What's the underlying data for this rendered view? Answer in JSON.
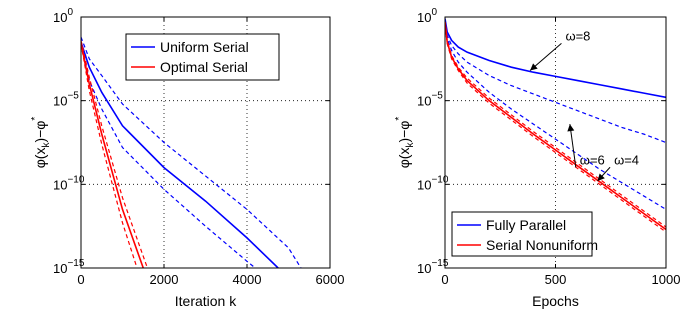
{
  "chart_data": [
    {
      "type": "line",
      "xlabel": "Iteration k",
      "ylabel": "φ(x_k)−φ*",
      "yscale": "log",
      "xlim": [
        0,
        6000
      ],
      "ylim_exp": [
        -15,
        0
      ],
      "xticks": [
        {
          "value": 0,
          "label": "0"
        },
        {
          "value": 2000,
          "label": "2000"
        },
        {
          "value": 4000,
          "label": "4000"
        },
        {
          "value": 6000,
          "label": "6000"
        }
      ],
      "yticks": [
        {
          "exp": 0,
          "label": "10"
        },
        {
          "exp": -5,
          "label": "10"
        },
        {
          "exp": -10,
          "label": "10"
        },
        {
          "exp": -15,
          "label": "10"
        }
      ],
      "grid": true,
      "legend_position": "top-right",
      "series": [
        {
          "name": "Uniform Serial",
          "color": "#0000ff",
          "style": "solid",
          "x": [
            0,
            200,
            500,
            1000,
            2000,
            3000,
            4000,
            4750
          ],
          "log10y": [
            -1.5,
            -3.0,
            -4.5,
            -6.5,
            -9.0,
            -11.0,
            -13.2,
            -15.0
          ]
        },
        {
          "name": "",
          "color": "#0000ff",
          "style": "dashed",
          "x": [
            0,
            200,
            500,
            1000,
            2000,
            3000,
            4000,
            5000,
            5300
          ],
          "log10y": [
            -1.2,
            -2.5,
            -3.5,
            -5.2,
            -7.5,
            -9.5,
            -11.5,
            -13.8,
            -15.0
          ]
        },
        {
          "name": "",
          "color": "#0000ff",
          "style": "dashed",
          "x": [
            0,
            200,
            500,
            1000,
            2000,
            3000,
            4000,
            4200
          ],
          "log10y": [
            -1.5,
            -3.8,
            -5.5,
            -7.8,
            -10.3,
            -12.5,
            -14.6,
            -15.0
          ]
        },
        {
          "name": "Optimal Serial",
          "color": "#ff0000",
          "style": "solid",
          "x": [
            0,
            100,
            200,
            500,
            1000,
            1500
          ],
          "log10y": [
            -1.5,
            -2.8,
            -4.0,
            -7.0,
            -11.5,
            -15.0
          ]
        },
        {
          "name": "",
          "color": "#ff0000",
          "style": "dashed",
          "x": [
            0,
            100,
            200,
            500,
            1000,
            1600
          ],
          "log10y": [
            -1.4,
            -2.5,
            -3.6,
            -6.5,
            -10.8,
            -15.0
          ]
        },
        {
          "name": "",
          "color": "#ff0000",
          "style": "dashed",
          "x": [
            0,
            100,
            200,
            500,
            1000,
            1350
          ],
          "log10y": [
            -1.6,
            -3.0,
            -4.4,
            -7.6,
            -12.3,
            -15.0
          ]
        }
      ]
    },
    {
      "type": "line",
      "xlabel": "Epochs",
      "ylabel": "φ(x_k)−φ*",
      "yscale": "log",
      "xlim": [
        0,
        1000
      ],
      "ylim_exp": [
        -15,
        0
      ],
      "xticks": [
        {
          "value": 0,
          "label": "0"
        },
        {
          "value": 500,
          "label": "500"
        },
        {
          "value": 1000,
          "label": "1000"
        }
      ],
      "yticks": [
        {
          "exp": 0,
          "label": "10"
        },
        {
          "exp": -5,
          "label": "10"
        },
        {
          "exp": -10,
          "label": "10"
        },
        {
          "exp": -15,
          "label": "10"
        }
      ],
      "grid": true,
      "legend_position": "bottom-left",
      "series": [
        {
          "name": "Fully Parallel",
          "color": "#0000ff",
          "style": "solid",
          "x": [
            0,
            10,
            30,
            60,
            100,
            200,
            300,
            400,
            500,
            600,
            700,
            800,
            900,
            1000
          ],
          "log10y": [
            -0.1,
            -0.9,
            -1.4,
            -1.8,
            -2.1,
            -2.6,
            -3.0,
            -3.3,
            -3.55,
            -3.8,
            -4.05,
            -4.3,
            -4.55,
            -4.8
          ]
        },
        {
          "name": "",
          "color": "#0000ff",
          "style": "dashed",
          "x": [
            0,
            10,
            30,
            60,
            100,
            200,
            300,
            400,
            500,
            600,
            700,
            800,
            900,
            1000
          ],
          "log10y": [
            -0.2,
            -1.1,
            -1.7,
            -2.2,
            -2.7,
            -3.5,
            -4.1,
            -4.6,
            -5.1,
            -5.6,
            -6.1,
            -6.6,
            -7.0,
            -7.5
          ]
        },
        {
          "name": "",
          "color": "#0000ff",
          "style": "dashed",
          "x": [
            0,
            10,
            30,
            60,
            100,
            200,
            300,
            400,
            500,
            600,
            700,
            800,
            900,
            1000
          ],
          "log10y": [
            -0.2,
            -1.3,
            -2.0,
            -2.7,
            -3.3,
            -4.5,
            -5.5,
            -6.4,
            -7.3,
            -8.2,
            -9.1,
            -9.9,
            -10.7,
            -11.5
          ]
        },
        {
          "name": "Serial Nonuniform",
          "color": "#ff0000",
          "style": "solid",
          "x": [
            0,
            10,
            30,
            60,
            100,
            200,
            300,
            400,
            500,
            600,
            700,
            800,
            900,
            1000
          ],
          "log10y": [
            -0.3,
            -1.5,
            -2.4,
            -3.1,
            -3.8,
            -5.0,
            -6.0,
            -7.0,
            -7.95,
            -8.9,
            -9.85,
            -10.8,
            -11.75,
            -12.7
          ]
        },
        {
          "name": "",
          "color": "#ff0000",
          "style": "dashed",
          "x": [
            0,
            10,
            30,
            60,
            100,
            200,
            300,
            400,
            500,
            600,
            700,
            800,
            900,
            1000
          ],
          "log10y": [
            -0.3,
            -1.4,
            -2.3,
            -3.0,
            -3.65,
            -4.85,
            -5.85,
            -6.85,
            -7.8,
            -8.75,
            -9.7,
            -10.65,
            -11.6,
            -12.55
          ]
        },
        {
          "name": "",
          "color": "#ff0000",
          "style": "dashed",
          "x": [
            0,
            10,
            30,
            60,
            100,
            200,
            300,
            400,
            500,
            600,
            700,
            800,
            900,
            1000
          ],
          "log10y": [
            -0.3,
            -1.6,
            -2.5,
            -3.2,
            -3.95,
            -5.15,
            -6.15,
            -7.15,
            -8.1,
            -9.05,
            -10.0,
            -10.95,
            -11.9,
            -12.85
          ]
        }
      ],
      "annotations": [
        {
          "text": "ω=8",
          "x": 545,
          "log10y": -1.4,
          "arrow_to": {
            "x": 385,
            "log10y": -3.2
          }
        },
        {
          "text": "ω=6",
          "x": 610,
          "log10y": -8.8,
          "arrow_to": {
            "x": 565,
            "log10y": -6.4
          }
        },
        {
          "text": "ω=4",
          "x": 765,
          "log10y": -8.8,
          "arrow_to": {
            "x": 690,
            "log10y": -9.8
          }
        }
      ]
    }
  ]
}
